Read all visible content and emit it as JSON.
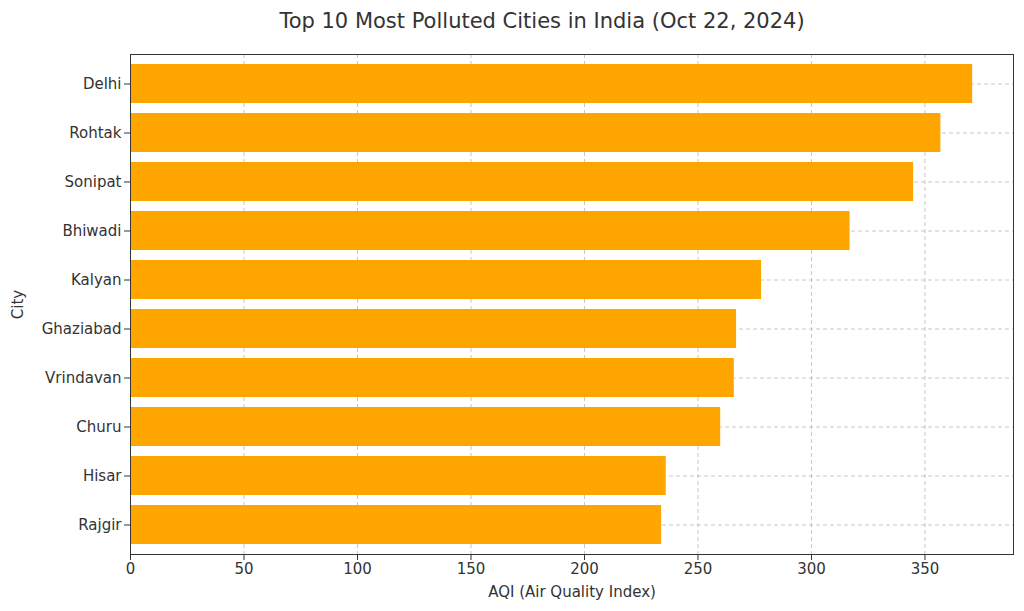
{
  "chart_data": {
    "type": "bar",
    "orientation": "horizontal",
    "title": "Top 10 Most Polluted Cities in India (Oct 22, 2024)",
    "x_label": "AQI (Air Quality Index)",
    "y_label": "City",
    "categories": [
      "Delhi",
      "Rohtak",
      "Sonipat",
      "Bhiwadi",
      "Kalyan",
      "Ghaziabad",
      "Vrindavan",
      "Churu",
      "Hisar",
      "Rajgir"
    ],
    "values": [
      371,
      357,
      345,
      317,
      278,
      267,
      266,
      260,
      236,
      234
    ],
    "color": "#ffa500",
    "xlim": [
      0,
      389
    ],
    "xticks": [
      0,
      50,
      100,
      150,
      200,
      250,
      300,
      350
    ],
    "grid": true
  }
}
